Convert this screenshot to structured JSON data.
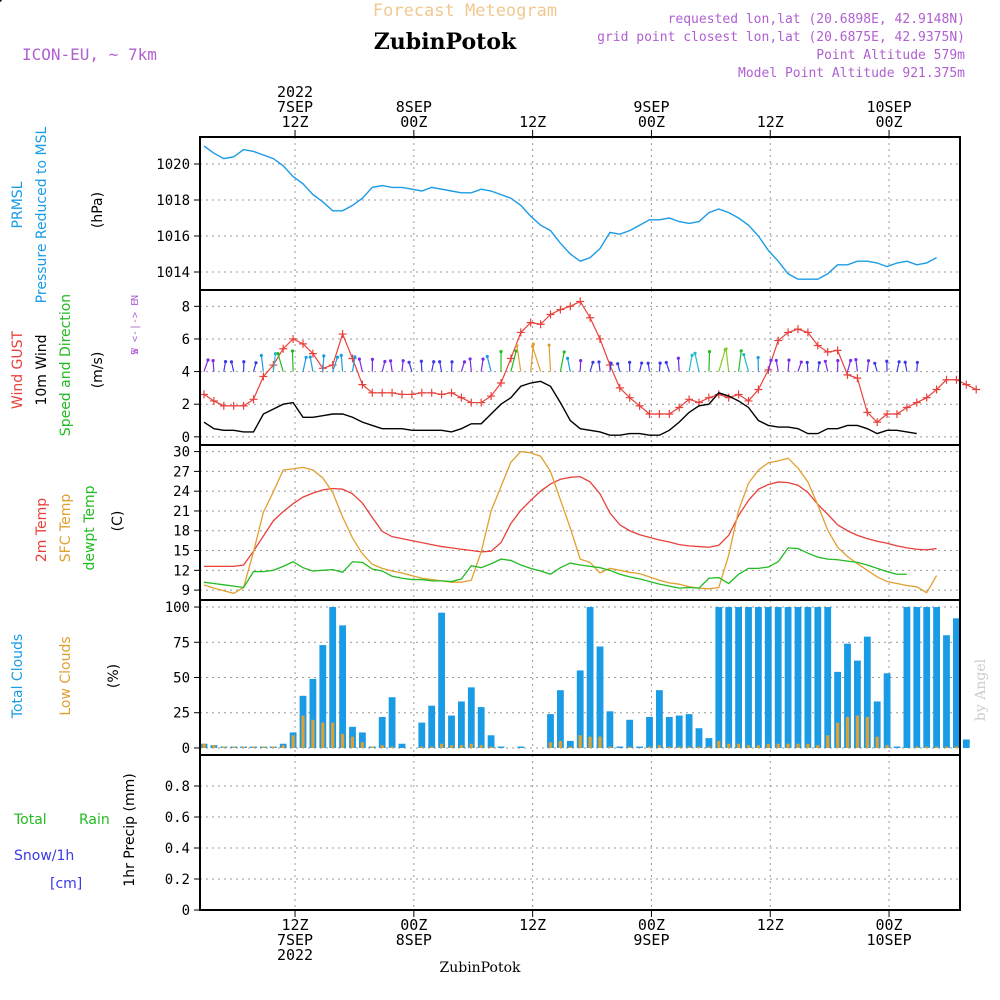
{
  "header": {
    "product_title": "Forecast Meteogram",
    "model": "ICON-EU, ~ 7km",
    "location": "ZubinPotok",
    "requested": "requested lon,lat (20.6898E, 42.9148N)",
    "closest": "grid point closest lon,lat (20.6875E, 42.9375N)",
    "altitude": "Point Altitude 579m",
    "model_altitude": "Model Point Altitude 921.375m"
  },
  "footer": {
    "location": "ZubinPotok",
    "watermark": "by Angel"
  },
  "colors": {
    "pressure": "#1a9be6",
    "gust": "#e8413c",
    "wind": "#000000",
    "dir": "#22bb22",
    "temp": "#e8413c",
    "sfc": "#e0a030",
    "dewpt": "#22bb22",
    "total_clouds": "#1a9be6",
    "low_clouds": "#e0a030",
    "rain": "#22bb22",
    "snow": "#3a3ae8",
    "title": "#f0c890",
    "info": "#b060d0"
  },
  "time_axis": {
    "top": [
      {
        "hour": 12,
        "lines": [
          "2022",
          "7SEP",
          "12Z"
        ]
      },
      {
        "hour": 24,
        "lines": [
          "8SEP",
          "00Z"
        ]
      },
      {
        "hour": 36,
        "lines": [
          "12Z"
        ]
      },
      {
        "hour": 48,
        "lines": [
          "9SEP",
          "00Z"
        ]
      },
      {
        "hour": 60,
        "lines": [
          "12Z"
        ]
      },
      {
        "hour": 72,
        "lines": [
          "10SEP",
          "00Z"
        ]
      }
    ],
    "bottom": [
      {
        "hour": 12,
        "lines": [
          "12Z",
          "7SEP",
          "2022"
        ]
      },
      {
        "hour": 24,
        "lines": [
          "00Z",
          "8SEP"
        ]
      },
      {
        "hour": 36,
        "lines": [
          "12Z"
        ]
      },
      {
        "hour": 48,
        "lines": [
          "00Z",
          "9SEP"
        ]
      },
      {
        "hour": 60,
        "lines": [
          "12Z"
        ]
      },
      {
        "hour": 72,
        "lines": [
          "00Z",
          "10SEP"
        ]
      }
    ]
  },
  "chart_data": [
    {
      "type": "line",
      "id": "pressure",
      "ylabel": [
        "PRMSL",
        "Pressure Reduced to MSL"
      ],
      "unit": "(hPa)",
      "yticks": [
        1014,
        1016,
        1018,
        1020
      ],
      "ylim": [
        1013,
        1021.5
      ],
      "series": [
        {
          "name": "PRMSL",
          "values": [
            1021.0,
            1020.6,
            1020.3,
            1020.4,
            1020.8,
            1020.7,
            1020.5,
            1020.3,
            1019.9,
            1019.3,
            1018.9,
            1018.3,
            1017.9,
            1017.4,
            1017.4,
            1017.7,
            1018.1,
            1018.7,
            1018.8,
            1018.7,
            1018.7,
            1018.6,
            1018.5,
            1018.7,
            1018.6,
            1018.5,
            1018.4,
            1018.4,
            1018.6,
            1018.5,
            1018.3,
            1018.1,
            1017.7,
            1017.1,
            1016.6,
            1016.3,
            1015.6,
            1015.0,
            1014.6,
            1014.8,
            1015.3,
            1016.2,
            1016.1,
            1016.3,
            1016.6,
            1016.9,
            1016.9,
            1017.0,
            1016.8,
            1016.7,
            1016.8,
            1017.3,
            1017.5,
            1017.3,
            1017.0,
            1016.6,
            1016.0,
            1015.2,
            1014.6,
            1013.9,
            1013.6,
            1013.6,
            1013.6,
            1013.9,
            1014.4,
            1014.4,
            1014.6,
            1014.6,
            1014.5,
            1014.3,
            1014.5,
            1014.6,
            1014.4,
            1014.5,
            1014.8
          ]
        }
      ]
    },
    {
      "type": "line",
      "id": "wind",
      "ylabel": [
        "Wind GUST",
        "10m Wind",
        "Speed and Direction"
      ],
      "unit": "(m/s)",
      "compass": [
        "N",
        "W <-|-> E",
        "S"
      ],
      "yticks": [
        0,
        2,
        4,
        6,
        8
      ],
      "ylim": [
        -0.5,
        9
      ],
      "series": [
        {
          "name": "Wind GUST",
          "values": [
            2.6,
            2.2,
            1.9,
            1.9,
            1.9,
            2.3,
            3.7,
            4.4,
            5.4,
            6.0,
            5.7,
            5.1,
            4.2,
            4.4,
            6.3,
            4.8,
            3.2,
            2.7,
            2.7,
            2.7,
            2.6,
            2.6,
            2.7,
            2.7,
            2.6,
            2.7,
            2.4,
            2.1,
            2.1,
            2.5,
            3.3,
            4.8,
            6.4,
            7.0,
            6.9,
            7.5,
            7.8,
            8.0,
            8.3,
            7.3,
            6.0,
            4.4,
            3.0,
            2.4,
            1.9,
            1.4,
            1.4,
            1.4,
            1.8,
            2.3,
            2.1,
            2.4,
            2.6,
            2.4,
            2.6,
            2.2,
            2.9,
            4.1,
            5.9,
            6.4,
            6.6,
            6.4,
            5.6,
            5.2,
            5.3,
            3.8,
            3.6,
            1.5,
            0.9,
            1.4,
            1.4,
            1.8,
            2.1,
            2.4,
            2.9,
            3.5,
            3.5,
            3.2,
            2.9
          ]
        },
        {
          "name": "10m Wind",
          "values": [
            0.9,
            0.5,
            0.4,
            0.4,
            0.3,
            0.3,
            1.4,
            1.7,
            2.0,
            2.1,
            1.2,
            1.2,
            1.3,
            1.4,
            1.4,
            1.2,
            0.9,
            0.7,
            0.5,
            0.5,
            0.5,
            0.4,
            0.4,
            0.4,
            0.4,
            0.3,
            0.5,
            0.8,
            0.8,
            1.4,
            2.0,
            2.4,
            3.1,
            3.3,
            3.4,
            3.1,
            2.1,
            1.0,
            0.5,
            0.4,
            0.3,
            0.1,
            0.1,
            0.2,
            0.2,
            0.1,
            0.1,
            0.4,
            0.9,
            1.5,
            1.9,
            2.0,
            2.7,
            2.5,
            2.2,
            1.8,
            1.0,
            0.7,
            0.6,
            0.6,
            0.5,
            0.2,
            0.2,
            0.5,
            0.5,
            0.7,
            0.7,
            0.5,
            0.2,
            0.4,
            0.4,
            0.3,
            0.2
          ]
        }
      ],
      "direction_arrows": "colored wind barbs along 4 m/s, one per hour"
    },
    {
      "type": "line",
      "id": "temperature",
      "ylabel": [
        "2m Temp",
        "SFC Temp",
        "dewpt Temp"
      ],
      "unit": "(C)",
      "yticks": [
        9,
        12,
        15,
        18,
        21,
        24,
        27,
        30
      ],
      "ylim": [
        7.5,
        31
      ],
      "series": [
        {
          "name": "2m Temp",
          "values": [
            12.6,
            12.6,
            12.6,
            12.6,
            12.8,
            14.9,
            17.2,
            19.5,
            20.9,
            22.1,
            23.1,
            23.7,
            24.2,
            24.4,
            24.3,
            23.6,
            22.2,
            20.0,
            17.9,
            17.1,
            16.8,
            16.5,
            16.2,
            15.9,
            15.6,
            15.4,
            15.2,
            15.0,
            14.8,
            14.9,
            16.2,
            19.1,
            21.1,
            22.6,
            24.0,
            25.1,
            25.8,
            26.1,
            26.2,
            25.4,
            23.6,
            20.7,
            18.9,
            18.0,
            17.4,
            17.0,
            16.6,
            16.3,
            15.9,
            15.7,
            15.6,
            15.5,
            15.8,
            17.3,
            20.3,
            22.6,
            24.3,
            25.0,
            25.4,
            25.3,
            24.9,
            23.8,
            22.0,
            20.5,
            18.9,
            18.0,
            17.3,
            16.8,
            16.4,
            16.1,
            15.7,
            15.4,
            15.2,
            15.1,
            15.3
          ]
        },
        {
          "name": "SFC Temp",
          "values": [
            9.8,
            9.3,
            8.9,
            8.5,
            9.4,
            14.8,
            20.8,
            23.9,
            27.2,
            27.4,
            27.6,
            27.2,
            26.0,
            23.8,
            20.1,
            16.9,
            14.5,
            12.9,
            12.3,
            11.9,
            11.6,
            11.2,
            10.8,
            10.6,
            10.4,
            10.2,
            10.2,
            10.5,
            14.8,
            21.0,
            24.7,
            28.4,
            30.0,
            29.8,
            29.3,
            27.0,
            22.7,
            18.4,
            13.7,
            13.2,
            11.6,
            12.3,
            12.0,
            11.7,
            11.5,
            11.0,
            10.5,
            10.1,
            9.9,
            9.5,
            9.3,
            9.2,
            9.4,
            14.3,
            21.1,
            25.2,
            27.2,
            28.3,
            28.6,
            29.0,
            27.5,
            25.4,
            21.9,
            18.1,
            15.5,
            14.1,
            13.0,
            12.0,
            11.0,
            10.3,
            10.0,
            9.7,
            9.5,
            8.6,
            11.2
          ]
        },
        {
          "name": "dewpt Temp",
          "values": [
            10.2,
            10.0,
            9.8,
            9.6,
            9.4,
            11.8,
            11.8,
            12.0,
            12.6,
            13.3,
            12.4,
            11.9,
            12.0,
            12.1,
            11.7,
            13.3,
            13.2,
            12.2,
            11.9,
            11.1,
            10.8,
            10.6,
            10.6,
            10.4,
            10.4,
            10.3,
            10.7,
            12.7,
            12.4,
            13.0,
            13.7,
            13.5,
            12.8,
            12.3,
            11.9,
            11.4,
            12.4,
            13.1,
            12.8,
            12.6,
            12.4,
            12.0,
            11.4,
            11.0,
            10.7,
            10.3,
            9.9,
            9.6,
            9.3,
            9.4,
            9.3,
            10.8,
            10.9,
            10.0,
            11.4,
            12.3,
            12.3,
            12.5,
            13.3,
            15.4,
            15.3,
            14.6,
            14.0,
            13.7,
            13.6,
            13.4,
            13.2,
            12.8,
            12.3,
            11.8,
            11.4,
            11.4
          ]
        }
      ]
    },
    {
      "type": "bar",
      "id": "clouds",
      "ylabel": [
        "Total Clouds",
        "Low Clouds"
      ],
      "unit": "(%)",
      "yticks": [
        0,
        25,
        50,
        75,
        100
      ],
      "ylim": [
        -5,
        105
      ],
      "series": [
        {
          "name": "Total Clouds",
          "values": [
            3,
            2,
            1,
            1,
            1,
            1,
            1,
            1,
            3,
            11,
            37,
            49,
            73,
            100,
            87,
            15,
            11,
            1,
            22,
            36,
            3,
            0,
            18,
            30,
            96,
            23,
            33,
            43,
            29,
            9,
            1,
            0,
            1,
            0,
            0,
            24,
            41,
            5,
            55,
            100,
            72,
            26,
            1,
            20,
            1,
            22,
            41,
            22,
            23,
            24,
            14,
            7,
            100,
            100,
            100,
            100,
            100,
            100,
            100,
            100,
            100,
            100,
            100,
            100,
            54,
            74,
            62,
            79,
            33,
            53,
            1,
            100,
            100,
            100,
            100,
            80,
            92,
            6
          ]
        },
        {
          "name": "Low Clouds",
          "values": [
            3,
            2,
            1,
            1,
            1,
            1,
            1,
            1,
            2,
            9,
            23,
            20,
            18,
            18,
            10,
            8,
            4,
            1,
            2,
            1,
            0,
            0,
            1,
            1,
            3,
            2,
            2,
            3,
            2,
            1,
            0,
            0,
            0,
            0,
            0,
            4,
            5,
            1,
            9,
            8,
            8,
            1,
            0,
            1,
            0,
            1,
            2,
            1,
            1,
            1,
            1,
            1,
            5,
            3,
            3,
            2,
            2,
            3,
            3,
            3,
            3,
            3,
            2,
            9,
            18,
            22,
            23,
            22,
            8,
            2,
            0,
            0,
            1,
            1,
            1,
            1,
            1,
            0
          ]
        }
      ]
    },
    {
      "type": "bar",
      "id": "precip",
      "ylabel": [
        "1hr Precip (mm)"
      ],
      "side_labels": [
        "Total",
        "Rain",
        "Snow/1h",
        "[cm]"
      ],
      "yticks": [
        0,
        0.2,
        0.4,
        0.6,
        0.8
      ],
      "ylim": [
        0,
        1.0
      ],
      "series": [
        {
          "name": "Total",
          "values": []
        },
        {
          "name": "Rain",
          "values": []
        },
        {
          "name": "Snow/1h",
          "values": []
        }
      ]
    }
  ]
}
